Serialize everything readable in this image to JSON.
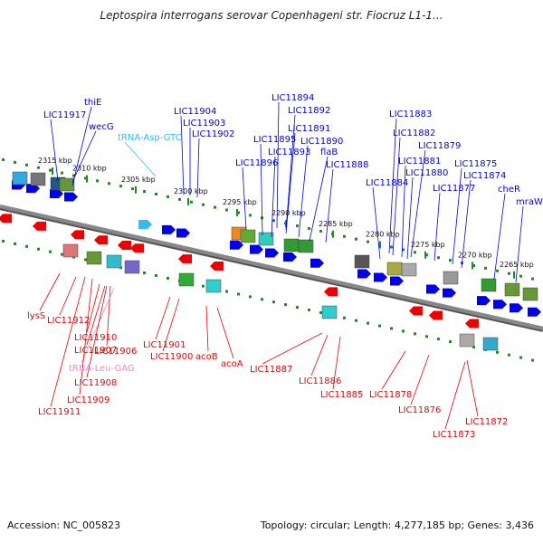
{
  "title": "Leptospira interrogans serovar Copenhageni str. Fiocruz L1-1...",
  "accession": "Accession: NC_005823",
  "topology": "Topology: circular; Length: 4,277,185 bp; Genes: 3,436",
  "colors": {
    "forward_gene": "#0000ee",
    "reverse_gene": "#ee0000",
    "trna_forward": "#33bbee",
    "trna_reverse": "#ee88cc",
    "backbone": "#888888",
    "track_dot": "#228822"
  },
  "scale_labels": [
    "2315 kbp",
    "2310 kbp",
    "2305 kbp",
    "2300 kbp",
    "2295 kbp",
    "2290 kbp",
    "2285 kbp",
    "2280 kbp",
    "2275 kbp",
    "2270 kbp",
    "2265 kbp"
  ],
  "forward_labels": [
    "thiE",
    "LIC11917",
    "wecG",
    "tRNA-Asp-GTC",
    "LIC11904",
    "LIC11903",
    "LIC11902",
    "LIC11894",
    "LIC11892",
    "LIC11891",
    "LIC11895",
    "LIC11890",
    "LIC11893",
    "flaB",
    "LIC11896",
    "LIC11888",
    "LIC11883",
    "LIC11882",
    "LIC11879",
    "LIC11881",
    "LIC11880",
    "LIC11884",
    "LIC11877",
    "LIC11875",
    "LIC11874",
    "cheR",
    "mraW"
  ],
  "reverse_labels": [
    "lysS",
    "LIC11912",
    "LIC11910",
    "LIC11907",
    "LIC11906",
    "tRNA-Leu-GAG",
    "LIC11908",
    "LIC11909",
    "LIC11911",
    "LIC11901",
    "LIC11900",
    "acoB",
    "acoA",
    "LIC11887",
    "LIC11886",
    "LIC11885",
    "LIC11878",
    "LIC11876",
    "LIC11872",
    "LIC11873"
  ]
}
